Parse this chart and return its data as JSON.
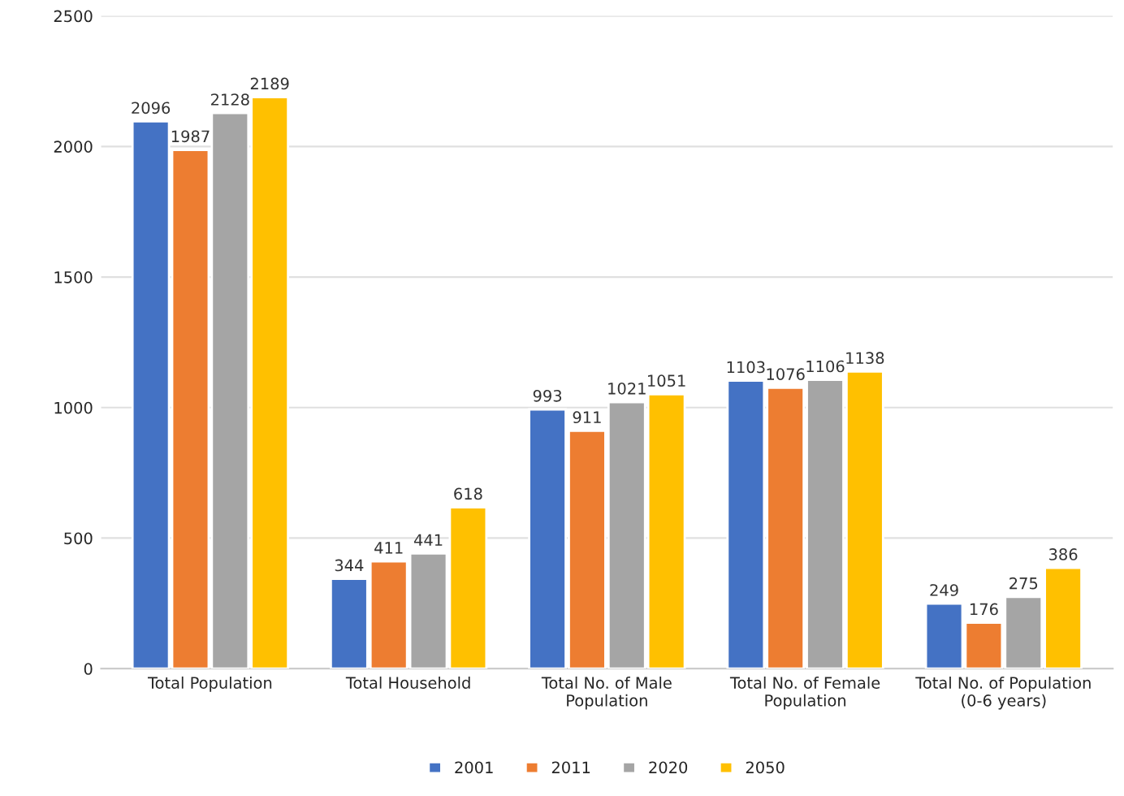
{
  "chart_data": {
    "type": "bar",
    "categories": [
      "Total Population",
      "Total Household",
      "Total No. of Male\nPopulation",
      "Total No. of Female\nPopulation",
      "Total No. of Population\n(0-6 years)"
    ],
    "series": [
      {
        "name": "2001",
        "color": "#4472c4",
        "values": [
          2096,
          344,
          993,
          1103,
          249
        ]
      },
      {
        "name": "2011",
        "color": "#ed7d31",
        "values": [
          1987,
          411,
          911,
          1076,
          176
        ]
      },
      {
        "name": "2020",
        "color": "#a5a5a5",
        "values": [
          2128,
          441,
          1021,
          1106,
          275
        ]
      },
      {
        "name": "2050",
        "color": "#ffc000",
        "values": [
          2189,
          618,
          1051,
          1138,
          386
        ]
      }
    ],
    "ylim": [
      0,
      2500
    ],
    "yticks": [
      0,
      500,
      1000,
      1500,
      2000,
      2500
    ],
    "grid": "y",
    "legend": "bottom",
    "data_labels": true
  }
}
